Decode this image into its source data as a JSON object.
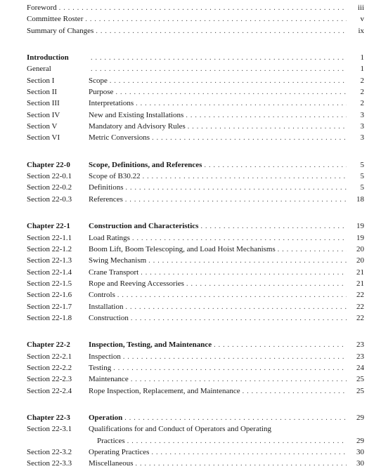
{
  "dots": "..................................................................................................................",
  "front_matter": [
    {
      "title": "Foreword",
      "page": "iii"
    },
    {
      "title": "Committee Roster",
      "page": "v"
    },
    {
      "title": "Summary of Changes",
      "page": "ix"
    }
  ],
  "groups": [
    {
      "heading": {
        "section": "Introduction",
        "title": "",
        "page": "1"
      },
      "entries": [
        {
          "section": "General",
          "title": "",
          "page": "1"
        },
        {
          "section": "Section I",
          "title": "Scope",
          "page": "2"
        },
        {
          "section": "Section II",
          "title": "Purpose",
          "page": "2"
        },
        {
          "section": "Section III",
          "title": "Interpretations",
          "page": "2"
        },
        {
          "section": "Section IV",
          "title": "New and Existing Installations",
          "page": "3"
        },
        {
          "section": "Section V",
          "title": "Mandatory and Advisory Rules",
          "page": "3"
        },
        {
          "section": "Section VI",
          "title": "Metric Conversions",
          "page": "3"
        }
      ]
    },
    {
      "heading": {
        "section": "Chapter 22-0",
        "title": "Scope, Definitions, and References",
        "page": "5"
      },
      "entries": [
        {
          "section": "Section 22-0.1",
          "title": "Scope of B30.22",
          "page": "5"
        },
        {
          "section": "Section 22-0.2",
          "title": "Definitions",
          "page": "5"
        },
        {
          "section": "Section 22-0.3",
          "title": "References",
          "page": "18"
        }
      ]
    },
    {
      "heading": {
        "section": "Chapter 22-1",
        "title": "Construction and Characteristics",
        "page": "19"
      },
      "entries": [
        {
          "section": "Section 22-1.1",
          "title": "Load Ratings",
          "page": "19"
        },
        {
          "section": "Section 22-1.2",
          "title": "Boom Lift, Boom Telescoping, and Load Hoist Mechanisms",
          "page": "20"
        },
        {
          "section": "Section 22-1.3",
          "title": "Swing Mechanism",
          "page": "20"
        },
        {
          "section": "Section 22-1.4",
          "title": "Crane Transport",
          "page": "21"
        },
        {
          "section": "Section 22-1.5",
          "title": "Rope and Reeving Accessories",
          "page": "21"
        },
        {
          "section": "Section 22-1.6",
          "title": "Controls",
          "page": "22"
        },
        {
          "section": "Section 22-1.7",
          "title": "Installation",
          "page": "22"
        },
        {
          "section": "Section 22-1.8",
          "title": "Construction",
          "page": "22"
        }
      ]
    },
    {
      "heading": {
        "section": "Chapter 22-2",
        "title": "Inspection, Testing, and Maintenance",
        "page": "23"
      },
      "entries": [
        {
          "section": "Section 22-2.1",
          "title": "Inspection",
          "page": "23"
        },
        {
          "section": "Section 22-2.2",
          "title": "Testing",
          "page": "24"
        },
        {
          "section": "Section 22-2.3",
          "title": "Maintenance",
          "page": "25"
        },
        {
          "section": "Section 22-2.4",
          "title": "Rope Inspection, Replacement, and Maintenance",
          "page": "25"
        }
      ]
    },
    {
      "heading": {
        "section": "Chapter 22-3",
        "title": "Operation",
        "page": "29"
      },
      "entries": [
        {
          "section": "Section 22-3.1",
          "title": "Qualifications for and Conduct of Operators and Operating",
          "cont": "Practices",
          "page": "29"
        },
        {
          "section": "Section 22-3.2",
          "title": "Operating Practices",
          "page": "30"
        },
        {
          "section": "Section 22-3.3",
          "title": "Miscellaneous",
          "page": "30"
        }
      ]
    }
  ]
}
